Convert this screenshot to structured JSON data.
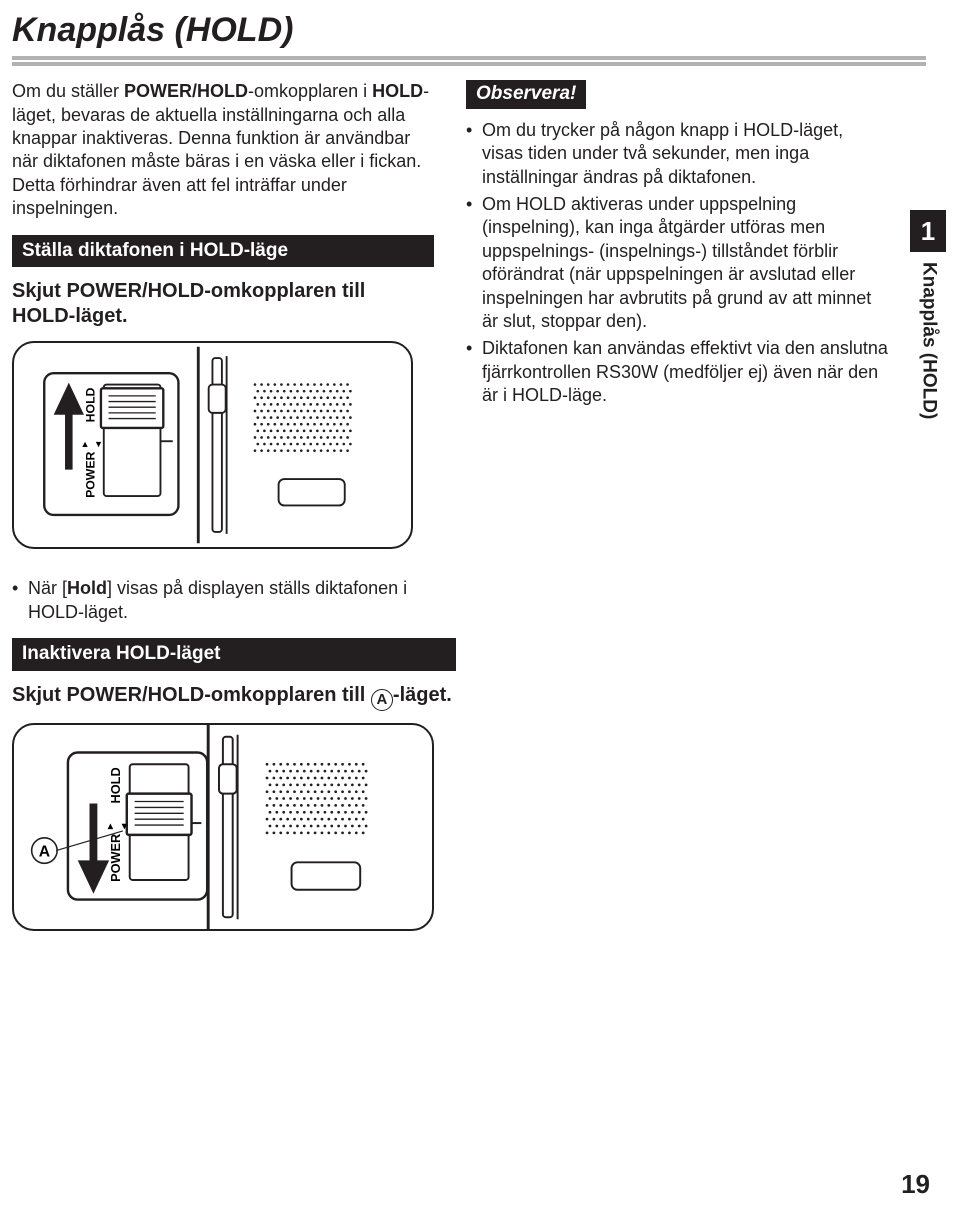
{
  "page": {
    "title": "Knapplås (HOLD)",
    "page_number": "19",
    "chapter_number": "1",
    "side_label": "Knapplås (HOLD)"
  },
  "left": {
    "intro_html": "Om du ställer <b>POWER/HOLD</b>-omkopplaren i <b>HOLD</b>-läget, bevaras de aktuella inställningarna och alla knappar inaktiveras. Denna funktion är användbar när diktafonen måste bäras i en väska eller i fickan. Detta förhindrar även att fel inträffar under inspelningen.",
    "bar1": "Ställa diktafonen i HOLD-läge",
    "instr1": "Skjut POWER/HOLD-omkopplaren till HOLD-läget.",
    "bullet_hold_html": "När [<b>Hold</b>] visas på displayen ställs diktafonen i HOLD-läget.",
    "bar2": "Inaktivera HOLD-läget",
    "instr2_pre": "Skjut POWER/HOLD-omkopplaren till ",
    "instr2_post": "-läget."
  },
  "right": {
    "observe": "Observera!",
    "b1": "Om du trycker på någon knapp i HOLD-läget, visas tiden under två sekunder, men inga inställningar ändras på diktafonen.",
    "b2": "Om HOLD aktiveras under uppspelning (inspelning), kan inga åtgärder utföras men uppspelnings- (inspelnings-) tillståndet förblir oförändrat (när uppspelningen är avslutad eller inspelningen har avbrutits på grund av att minnet är slut, stoppar den).",
    "b3": "Diktafonen kan användas effektivt via den anslutna fjärrkontrollen RS30W (medföljer ej) även när den är i HOLD-läge."
  },
  "figure": {
    "switch_label_hold": "HOLD",
    "switch_label_power": "POWER",
    "circle_a": "A"
  },
  "colors": {
    "black": "#231f20",
    "grey": "#b3b2b2"
  }
}
